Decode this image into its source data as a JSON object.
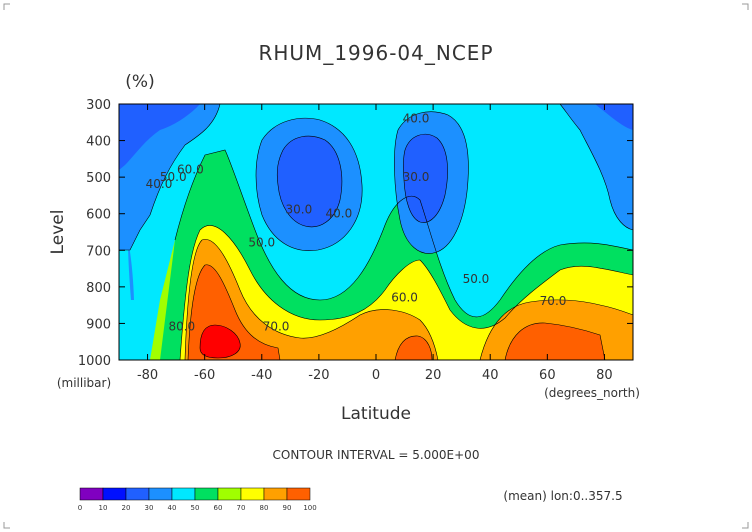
{
  "chart_data": {
    "type": "contour",
    "title": "RHUM_1996-04_NCEP",
    "units": "(%)",
    "xlabel": "Latitude",
    "x_units": "(degrees_north)",
    "ylabel": "Level",
    "y_units": "(millibar)",
    "xlim": [
      -90,
      90
    ],
    "ylim": [
      1000,
      300
    ],
    "x_ticks": [
      -80,
      -60,
      -40,
      -20,
      0,
      20,
      40,
      60,
      80
    ],
    "y_ticks": [
      300,
      400,
      500,
      600,
      700,
      800,
      900,
      1000
    ],
    "contour_interval_text": "CONTOUR INTERVAL = 5.000E+00",
    "footer_text": "(mean) lon:0..357.5",
    "contour_labels": [
      {
        "text": "40.0",
        "lat": 14,
        "level": 350
      },
      {
        "text": "30.0",
        "lat": 14,
        "level": 510
      },
      {
        "text": "30.0",
        "lat": -27,
        "level": 600
      },
      {
        "text": "40.0",
        "lat": -13,
        "level": 610
      },
      {
        "text": "40.0",
        "lat": -76,
        "level": 530
      },
      {
        "text": "50.0",
        "lat": -71,
        "level": 510
      },
      {
        "text": "60.0",
        "lat": -65,
        "level": 490
      },
      {
        "text": "50.0",
        "lat": -40,
        "level": 690
      },
      {
        "text": "60.0",
        "lat": 10,
        "level": 840
      },
      {
        "text": "50.0",
        "lat": 35,
        "level": 790
      },
      {
        "text": "70.0",
        "lat": -35,
        "level": 920
      },
      {
        "text": "70.0",
        "lat": 62,
        "level": 850
      },
      {
        "text": "80.0",
        "lat": -68,
        "level": 920
      }
    ],
    "colorbar": {
      "labels": [
        "0",
        "10",
        "20",
        "30",
        "40",
        "50",
        "60",
        "70",
        "80",
        "90",
        "100"
      ],
      "colors": [
        "#8000c0",
        "#0010ff",
        "#2060ff",
        "#1c90ff",
        "#00e8ff",
        "#00e060",
        "#a0ff00",
        "#ffff00",
        "#ffa000",
        "#ff6000",
        "#ff0000"
      ]
    }
  }
}
